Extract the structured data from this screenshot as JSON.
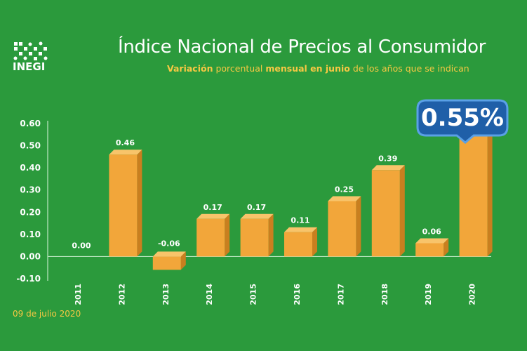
{
  "brand": {
    "logo_text": "INEGI"
  },
  "header": {
    "title": "Índice Nacional de Precios al Consumidor",
    "subtitle_parts": [
      "Variación",
      " porcentual ",
      "mensual en junio",
      " de los años que se indican"
    ]
  },
  "footer": {
    "date": "09 de julio 2020"
  },
  "highlight": {
    "label": "0.55%"
  },
  "colors": {
    "background": "#2b9a3c",
    "bar": "#f2a63a",
    "bar_side": "#c97f1f",
    "bar_top": "#f8c46a",
    "accent": "#f7c843",
    "callout": "#1f5fa8"
  },
  "chart_data": {
    "type": "bar",
    "title": "Índice Nacional de Precios al Consumidor",
    "categories": [
      "2011",
      "2012",
      "2013",
      "2014",
      "2015",
      "2016",
      "2017",
      "2018",
      "2019",
      "2020"
    ],
    "values": [
      0.0,
      0.46,
      -0.06,
      0.17,
      0.17,
      0.11,
      0.25,
      0.39,
      0.06,
      0.55
    ],
    "data_labels": [
      "0.00",
      "0.46",
      "-0.06",
      "0.17",
      "0.17",
      "0.11",
      "0.25",
      "0.39",
      "0.06",
      "0.55%"
    ],
    "yticks": [
      "0.60",
      "0.50",
      "0.40",
      "0.30",
      "0.20",
      "0.10",
      "0.00",
      "-0.10"
    ],
    "ylim": [
      -0.1,
      0.6
    ],
    "grid": false
  }
}
